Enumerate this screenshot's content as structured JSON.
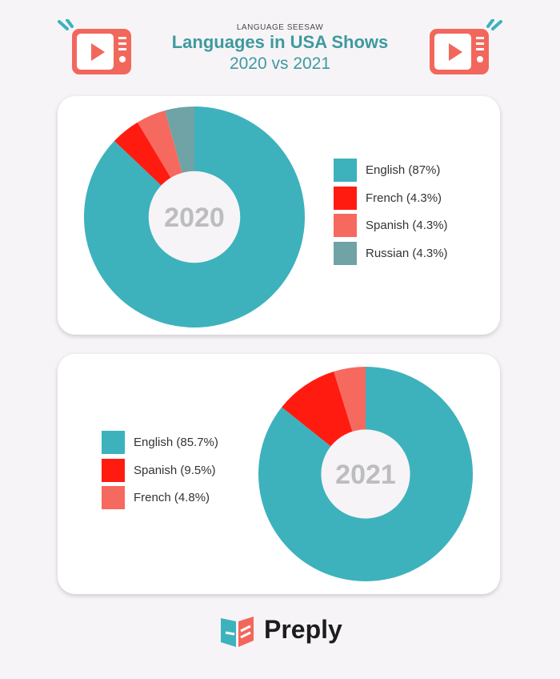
{
  "header": {
    "kicker": "LANGUAGE SEESAW",
    "title": "Languages in USA Shows",
    "subtitle": "2020 vs 2021"
  },
  "icons": {
    "tv": "tv-play-icon",
    "logo": "preply-book-icon"
  },
  "colors": {
    "teal": "#3db2bd",
    "red": "#ff1b10",
    "salmon": "#f6695e",
    "grayteal": "#6fa3a6",
    "center": "#f6f4f7",
    "center_text": "#bdbdbd",
    "title": "#3e9a9e"
  },
  "chart_data": [
    {
      "type": "pie",
      "title": "2020",
      "center_label": "2020",
      "legend_position": "right",
      "series": [
        {
          "name": "English",
          "value": 87,
          "label": "English (87%)",
          "color": "#3db2bd"
        },
        {
          "name": "French",
          "value": 4.3,
          "label": "French (4.3%)",
          "color": "#ff1b10"
        },
        {
          "name": "Spanish",
          "value": 4.3,
          "label": "Spanish (4.3%)",
          "color": "#f6695e"
        },
        {
          "name": "Russian",
          "value": 4.3,
          "label": "Russian (4.3%)",
          "color": "#6fa3a6"
        }
      ]
    },
    {
      "type": "pie",
      "title": "2021",
      "center_label": "2021",
      "legend_position": "left",
      "series": [
        {
          "name": "English",
          "value": 85.7,
          "label": "English (85.7%)",
          "color": "#3db2bd"
        },
        {
          "name": "Spanish",
          "value": 9.5,
          "label": "Spanish (9.5%)",
          "color": "#ff1b10"
        },
        {
          "name": "French",
          "value": 4.8,
          "label": "French (4.8%)",
          "color": "#f6695e"
        }
      ]
    }
  ],
  "footer": {
    "brand": "Preply"
  }
}
